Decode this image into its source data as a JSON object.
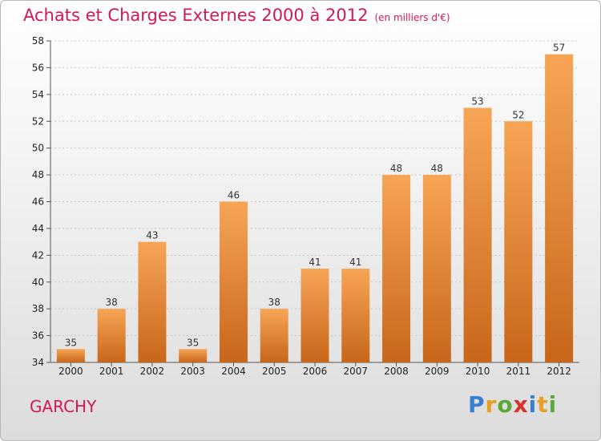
{
  "chart_data": {
    "type": "bar",
    "title": "Achats et Charges Externes 2000 à 2012",
    "unit_label": "(en milliers d'€)",
    "categories": [
      "2000",
      "2001",
      "2002",
      "2003",
      "2004",
      "2005",
      "2006",
      "2007",
      "2008",
      "2009",
      "2010",
      "2011",
      "2012"
    ],
    "values": [
      35,
      38,
      43,
      35,
      46,
      38,
      41,
      41,
      48,
      48,
      53,
      52,
      57
    ],
    "ylim": [
      34,
      58
    ],
    "yticks": [
      34,
      36,
      38,
      40,
      42,
      44,
      46,
      48,
      50,
      52,
      54,
      56,
      58
    ],
    "xlabel": "",
    "ylabel": "",
    "grid": true,
    "bar_color": "#f0913c"
  },
  "commune": "GARCHY",
  "logo": {
    "letters": [
      "P",
      "r",
      "o",
      "x",
      "i",
      "t",
      "i"
    ],
    "colors": [
      "#3a7fd0",
      "#e8a020",
      "#5aaa3a",
      "#d8302a",
      "#3a7fd0",
      "#e8a020",
      "#5aaa3a"
    ]
  }
}
